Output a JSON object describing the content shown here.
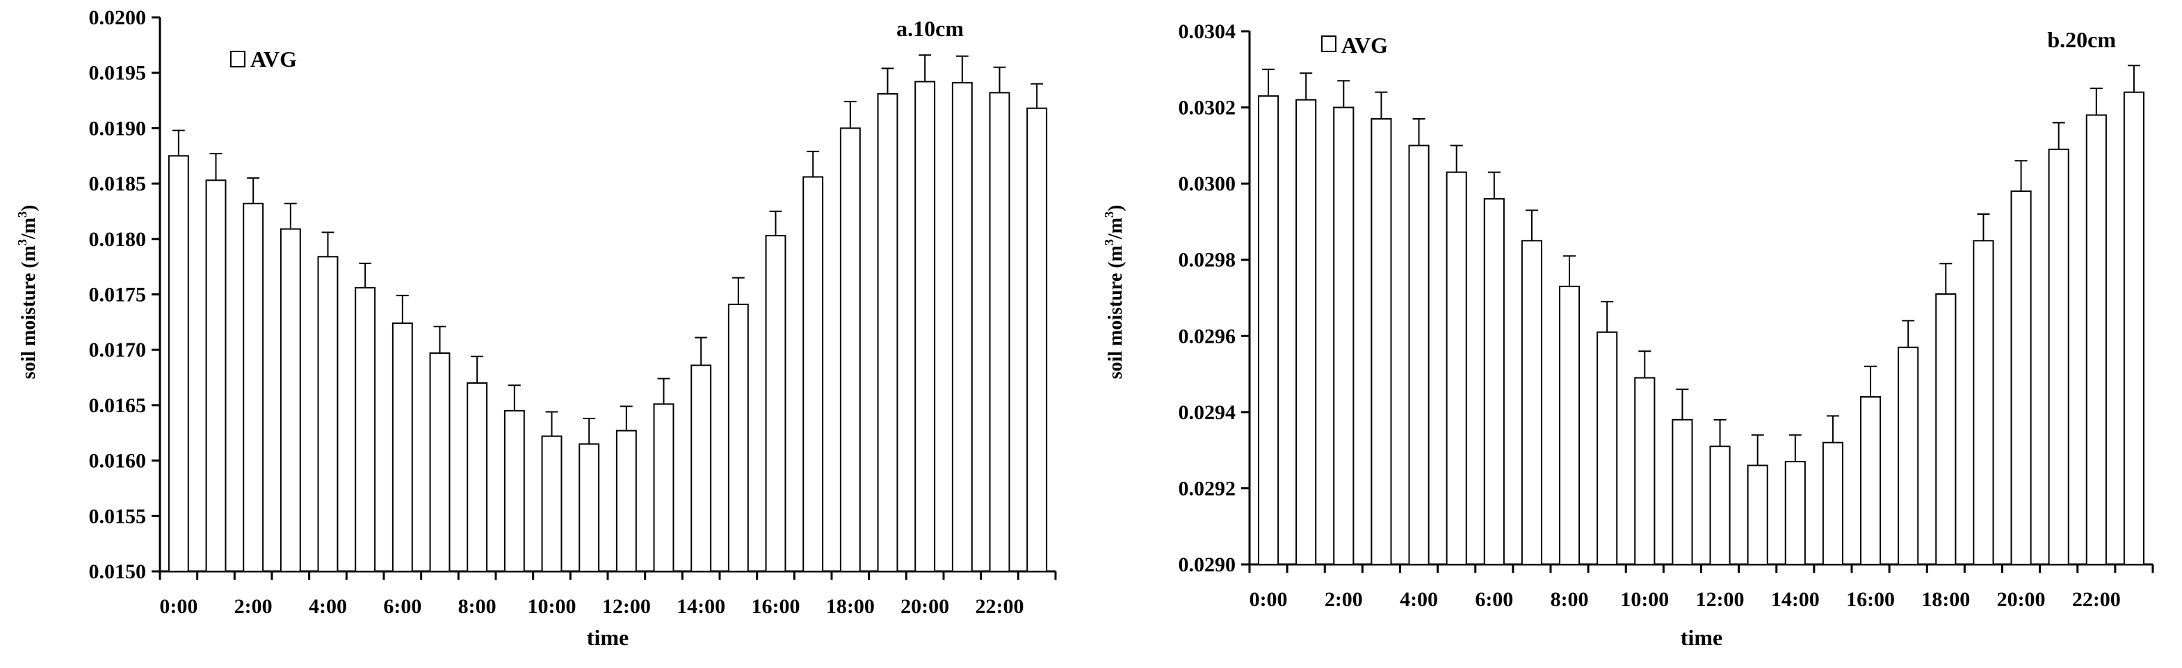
{
  "chart_data": [
    {
      "type": "bar",
      "title": "a.10cm",
      "xlabel": "time",
      "ylabel": "soil moisture (m³/m³)",
      "ylabel_parts": {
        "prefix": "soil moisture (m",
        "sup1": "3",
        "mid": "/m",
        "sup2": "3",
        "suffix": ")"
      },
      "ylim": [
        0.015,
        0.02
      ],
      "yticks": [
        "0.0150",
        "0.0155",
        "0.0160",
        "0.0165",
        "0.0170",
        "0.0175",
        "0.0180",
        "0.0185",
        "0.0190",
        "0.0195",
        "0.0200"
      ],
      "xtick_labels": [
        "0:00",
        "2:00",
        "4:00",
        "6:00",
        "8:00",
        "10:00",
        "12:00",
        "14:00",
        "16:00",
        "18:00",
        "20:00",
        "22:00"
      ],
      "legend": "AVG",
      "legend_position": "top-left",
      "categories": [
        "0:00",
        "1:00",
        "2:00",
        "3:00",
        "4:00",
        "5:00",
        "6:00",
        "7:00",
        "8:00",
        "9:00",
        "10:00",
        "11:00",
        "12:00",
        "13:00",
        "14:00",
        "15:00",
        "16:00",
        "17:00",
        "18:00",
        "19:00",
        "20:00",
        "21:00",
        "22:00",
        "23:00"
      ],
      "series": [
        {
          "name": "AVG",
          "values": [
            0.01875,
            0.01853,
            0.01832,
            0.01809,
            0.01784,
            0.01756,
            0.01724,
            0.01697,
            0.0167,
            0.01645,
            0.01622,
            0.01615,
            0.01627,
            0.01651,
            0.01686,
            0.01741,
            0.01803,
            0.01856,
            0.019,
            0.01931,
            0.01942,
            0.01941,
            0.01932,
            0.01918
          ],
          "errors": [
            0.00023,
            0.00024,
            0.00023,
            0.00023,
            0.00022,
            0.00022,
            0.00025,
            0.00024,
            0.00024,
            0.00023,
            0.00022,
            0.00023,
            0.00022,
            0.00023,
            0.00025,
            0.00024,
            0.00022,
            0.00023,
            0.00024,
            0.00023,
            0.00024,
            0.00024,
            0.00023,
            0.00022
          ]
        }
      ]
    },
    {
      "type": "bar",
      "title": "b.20cm",
      "xlabel": "time",
      "ylabel": "soil moisture (m³/m³)",
      "ylabel_parts": {
        "prefix": "soil moisture (m",
        "sup1": "3",
        "mid": "/m",
        "sup2": "3",
        "suffix": ")"
      },
      "ylim": [
        0.029,
        0.0304
      ],
      "yticks": [
        "0.0290",
        "0.0292",
        "0.0294",
        "0.0296",
        "0.0298",
        "0.0300",
        "0.0302",
        "0.0304"
      ],
      "xtick_labels": [
        "0:00",
        "2:00",
        "4:00",
        "6:00",
        "8:00",
        "10:00",
        "12:00",
        "14:00",
        "16:00",
        "18:00",
        "20:00",
        "22:00"
      ],
      "legend": "AVG",
      "legend_position": "top-left",
      "categories": [
        "0:00",
        "1:00",
        "2:00",
        "3:00",
        "4:00",
        "5:00",
        "6:00",
        "7:00",
        "8:00",
        "9:00",
        "10:00",
        "11:00",
        "12:00",
        "13:00",
        "14:00",
        "15:00",
        "16:00",
        "17:00",
        "18:00",
        "19:00",
        "20:00",
        "21:00",
        "22:00",
        "23:00"
      ],
      "series": [
        {
          "name": "AVG",
          "values": [
            0.03023,
            0.03022,
            0.0302,
            0.03017,
            0.0301,
            0.03003,
            0.02996,
            0.02985,
            0.02973,
            0.02961,
            0.02949,
            0.02938,
            0.02931,
            0.02926,
            0.02927,
            0.02932,
            0.02944,
            0.02957,
            0.02971,
            0.02985,
            0.02998,
            0.03009,
            0.03018,
            0.03024
          ],
          "errors": [
            7e-05,
            7e-05,
            7e-05,
            7e-05,
            7e-05,
            7e-05,
            7e-05,
            8e-05,
            8e-05,
            8e-05,
            7e-05,
            8e-05,
            7e-05,
            8e-05,
            7e-05,
            7e-05,
            8e-05,
            7e-05,
            8e-05,
            7e-05,
            8e-05,
            7e-05,
            7e-05,
            7e-05
          ]
        }
      ]
    }
  ]
}
